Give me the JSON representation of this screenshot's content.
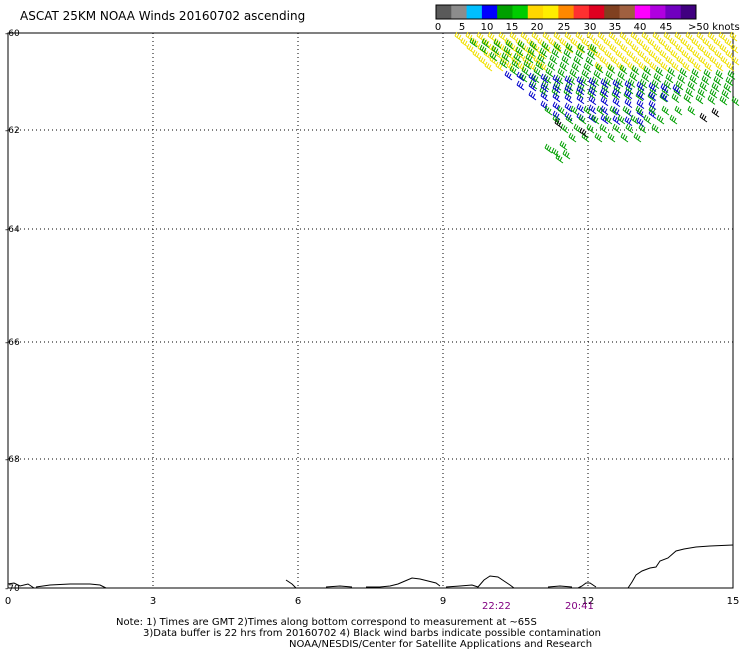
{
  "title": "ASCAT 25KM NOAA Winds 20160702 ascending",
  "legend": {
    "labels": [
      "0",
      "5",
      "10",
      "15",
      "20",
      "25",
      "30",
      "35",
      "40",
      "45",
      ">50 knots"
    ],
    "colors": [
      "#5a5a5a",
      "#8c8c8c",
      "#00bfff",
      "#0000ff",
      "#00a000",
      "#00cc00",
      "#ffd700",
      "#ffee00",
      "#ff8800",
      "#ff3030",
      "#e00020",
      "#804020",
      "#a06040",
      "#ff00ff",
      "#b000e0",
      "#7000c0",
      "#400080"
    ]
  },
  "y_axis": {
    "labels": [
      "-60",
      "-62",
      "-64",
      "-66",
      "-68",
      "-70"
    ]
  },
  "x_axis": {
    "labels": [
      "0",
      "3",
      "6",
      "9",
      "12",
      "15"
    ]
  },
  "pass_times": [
    "22:22",
    "20:41"
  ],
  "notes": {
    "line1": "Note: 1) Times are GMT 2)Times along bottom correspond to measurement at ~65S",
    "line2": "3)Data buffer is 22 hrs from 20160702 4) Black wind barbs indicate possible contamination",
    "line3": "NOAA/NESDIS/Center for Satellite Applications and Research"
  },
  "barb_colors": {
    "blue": "#0000cc",
    "green": "#00a000",
    "yellow": "#f0e000",
    "black": "#000000"
  }
}
